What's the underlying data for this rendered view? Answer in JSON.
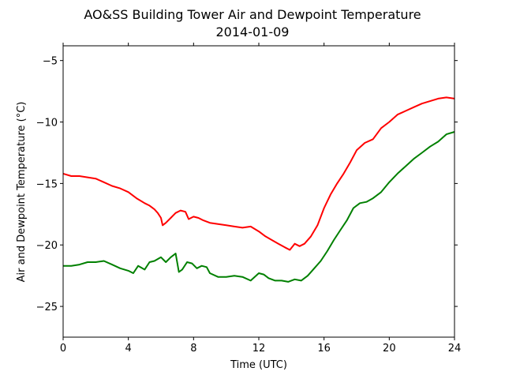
{
  "chart_data": {
    "type": "line",
    "title": "AO&SS Building Tower Air and Dewpoint Temperature",
    "subtitle": "2014-01-09",
    "xlabel": "Time (UTC)",
    "ylabel": "Air and Dewpoint Temperature (°C)",
    "xlim": [
      0,
      24
    ],
    "ylim": [
      -27.5,
      -3.8
    ],
    "x_ticks": [
      0,
      4,
      8,
      12,
      16,
      20,
      24
    ],
    "y_ticks": [
      -25,
      -20,
      -15,
      -10,
      -5
    ],
    "grid": false,
    "legend": "none",
    "series": [
      {
        "color": "#ff0000",
        "x": [
          0,
          0.5,
          1,
          1.5,
          2,
          2.5,
          3,
          3.5,
          4,
          4.5,
          5,
          5.3,
          5.6,
          5.8,
          6.0,
          6.1,
          6.3,
          6.6,
          6.9,
          7.2,
          7.5,
          7.7,
          8.0,
          8.3,
          8.6,
          9.0,
          9.5,
          10,
          10.5,
          11,
          11.5,
          12,
          12.4,
          12.8,
          13.2,
          13.6,
          13.9,
          14.2,
          14.5,
          14.8,
          15.2,
          15.6,
          16.0,
          16.4,
          16.8,
          17.2,
          17.6,
          18.0,
          18.5,
          19.0,
          19.5,
          20.0,
          20.5,
          21.0,
          21.5,
          22.0,
          22.5,
          23.0,
          23.5,
          24.0
        ],
        "values": [
          -14.2,
          -14.4,
          -14.4,
          -14.5,
          -14.6,
          -14.9,
          -15.2,
          -15.4,
          -15.7,
          -16.2,
          -16.6,
          -16.8,
          -17.1,
          -17.4,
          -17.8,
          -18.4,
          -18.2,
          -17.8,
          -17.4,
          -17.2,
          -17.3,
          -17.9,
          -17.7,
          -17.8,
          -18.0,
          -18.2,
          -18.3,
          -18.4,
          -18.5,
          -18.6,
          -18.5,
          -18.9,
          -19.3,
          -19.6,
          -19.9,
          -20.2,
          -20.4,
          -19.9,
          -20.1,
          -19.9,
          -19.3,
          -18.4,
          -17.0,
          -15.9,
          -15.0,
          -14.2,
          -13.3,
          -12.3,
          -11.7,
          -11.4,
          -10.5,
          -10.0,
          -9.4,
          -9.1,
          -8.8,
          -8.5,
          -8.3,
          -8.1,
          -8.0,
          -8.1
        ]
      },
      {
        "color": "#008000",
        "x": [
          0,
          0.5,
          1,
          1.5,
          2,
          2.5,
          3,
          3.5,
          4,
          4.3,
          4.6,
          5.0,
          5.3,
          5.6,
          6.0,
          6.3,
          6.6,
          6.9,
          7.1,
          7.3,
          7.6,
          7.9,
          8.2,
          8.5,
          8.8,
          9.0,
          9.5,
          10.0,
          10.5,
          11.0,
          11.5,
          12.0,
          12.3,
          12.6,
          13.0,
          13.4,
          13.8,
          14.2,
          14.6,
          15.0,
          15.4,
          15.8,
          16.2,
          16.6,
          17.0,
          17.4,
          17.8,
          18.2,
          18.6,
          19.0,
          19.5,
          20.0,
          20.5,
          21.0,
          21.5,
          22.0,
          22.5,
          23.0,
          23.5,
          24.0
        ],
        "values": [
          -21.7,
          -21.7,
          -21.6,
          -21.4,
          -21.4,
          -21.3,
          -21.6,
          -21.9,
          -22.1,
          -22.3,
          -21.7,
          -22.0,
          -21.4,
          -21.3,
          -21.0,
          -21.4,
          -21.0,
          -20.7,
          -22.2,
          -22.0,
          -21.4,
          -21.5,
          -21.9,
          -21.7,
          -21.8,
          -22.3,
          -22.6,
          -22.6,
          -22.5,
          -22.6,
          -22.9,
          -22.3,
          -22.4,
          -22.7,
          -22.9,
          -22.9,
          -23.0,
          -22.8,
          -22.9,
          -22.5,
          -21.9,
          -21.3,
          -20.5,
          -19.6,
          -18.8,
          -18.0,
          -17.0,
          -16.6,
          -16.5,
          -16.2,
          -15.7,
          -14.9,
          -14.2,
          -13.6,
          -13.0,
          -12.5,
          -12.0,
          -11.6,
          -11.0,
          -10.8
        ]
      }
    ]
  }
}
